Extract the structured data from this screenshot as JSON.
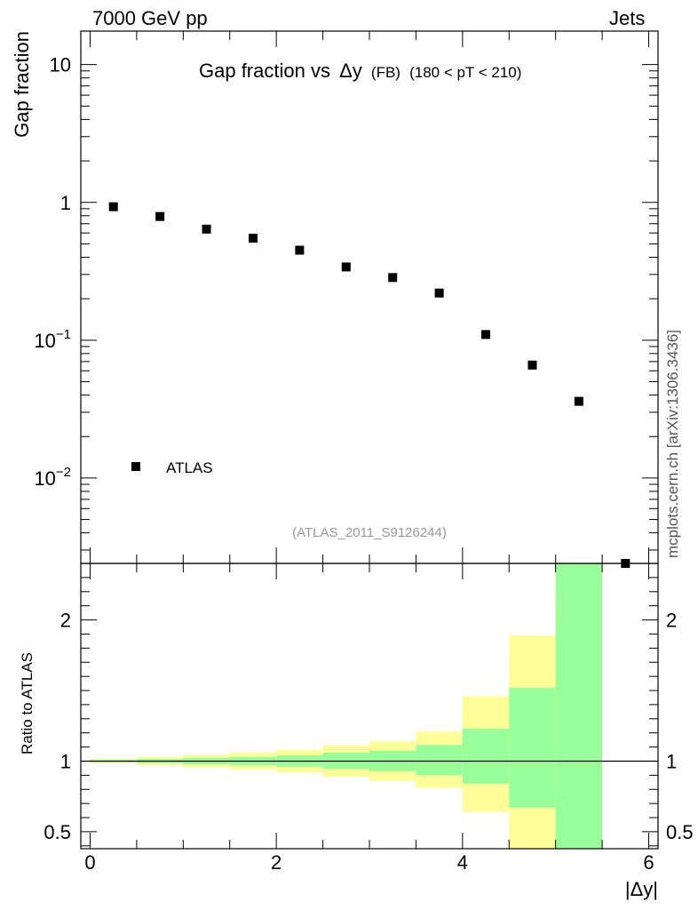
{
  "header": {
    "left": "7000 GeV pp",
    "right": "Jets"
  },
  "side_label": "mcplots.cern.ch [arXiv:1306.3436]",
  "title": {
    "main": "Gap fraction vs",
    "delta_symbol": "Δy",
    "sub": "(FB)",
    "range": "(180 < pT < 210)"
  },
  "reference": "(ATLAS_2011_S9126244)",
  "colors": {
    "yellow_band": "#ffff99",
    "green_band": "#99ff99",
    "marker": "#000000",
    "reference_text": "#999999"
  },
  "chart_data": [
    {
      "type": "scatter",
      "panel": "main",
      "ylabel": "Gap fraction",
      "yscale": "log",
      "xlim": [
        -0.1,
        6.1
      ],
      "ylim": [
        0.0024,
        17.5
      ],
      "yticks": [
        {
          "value": 0.01,
          "label": "10",
          "exp": "−2"
        },
        {
          "value": 0.1,
          "label": "10",
          "exp": "−1"
        },
        {
          "value": 1,
          "label": "1"
        },
        {
          "value": 10,
          "label": "10"
        }
      ],
      "series": [
        {
          "name": "ATLAS",
          "points": [
            {
              "x": 0.25,
              "y": 0.93
            },
            {
              "x": 0.75,
              "y": 0.79
            },
            {
              "x": 1.25,
              "y": 0.64
            },
            {
              "x": 1.75,
              "y": 0.55
            },
            {
              "x": 2.25,
              "y": 0.45
            },
            {
              "x": 2.75,
              "y": 0.34
            },
            {
              "x": 3.25,
              "y": 0.285
            },
            {
              "x": 3.75,
              "y": 0.22
            },
            {
              "x": 4.25,
              "y": 0.11
            },
            {
              "x": 4.75,
              "y": 0.066
            },
            {
              "x": 5.25,
              "y": 0.036
            },
            {
              "x": 5.75,
              "y": 0.0024
            }
          ]
        }
      ],
      "legend": "bottom-left",
      "grid": false
    },
    {
      "type": "area",
      "panel": "ratio",
      "ylabel": "Ratio to ATLAS",
      "xlabel": "|Δy|",
      "xlim": [
        -0.1,
        6.1
      ],
      "ylim": [
        0.38,
        2.4
      ],
      "xticks": [
        0,
        2,
        4,
        6
      ],
      "yticks": [
        0.5,
        1,
        2
      ],
      "reference_line": 1,
      "bins": [
        {
          "x0": 0.0,
          "x1": 0.5,
          "yellow": [
            0.985,
            1.015
          ],
          "green": [
            0.992,
            1.008
          ]
        },
        {
          "x0": 0.5,
          "x1": 1.0,
          "yellow": [
            0.97,
            1.03
          ],
          "green": [
            0.985,
            1.015
          ]
        },
        {
          "x0": 1.0,
          "x1": 1.5,
          "yellow": [
            0.955,
            1.045
          ],
          "green": [
            0.977,
            1.023
          ]
        },
        {
          "x0": 1.5,
          "x1": 2.0,
          "yellow": [
            0.94,
            1.06
          ],
          "green": [
            0.97,
            1.03
          ]
        },
        {
          "x0": 2.0,
          "x1": 2.5,
          "yellow": [
            0.92,
            1.08
          ],
          "green": [
            0.96,
            1.04
          ]
        },
        {
          "x0": 2.5,
          "x1": 3.0,
          "yellow": [
            0.89,
            1.11
          ],
          "green": [
            0.945,
            1.06
          ]
        },
        {
          "x0": 3.0,
          "x1": 3.5,
          "yellow": [
            0.86,
            1.14
          ],
          "green": [
            0.93,
            1.075
          ]
        },
        {
          "x0": 3.5,
          "x1": 4.0,
          "yellow": [
            0.81,
            1.21
          ],
          "green": [
            0.9,
            1.115
          ]
        },
        {
          "x0": 4.0,
          "x1": 4.5,
          "yellow": [
            0.64,
            1.46
          ],
          "green": [
            0.84,
            1.23
          ]
        },
        {
          "x0": 4.5,
          "x1": 5.0,
          "yellow": [
            0.38,
            1.89
          ],
          "green": [
            0.67,
            1.52
          ]
        },
        {
          "x0": 5.0,
          "x1": 5.5,
          "yellow": [
            0.38,
            2.4
          ],
          "green": [
            0.38,
            2.4
          ]
        }
      ]
    }
  ]
}
